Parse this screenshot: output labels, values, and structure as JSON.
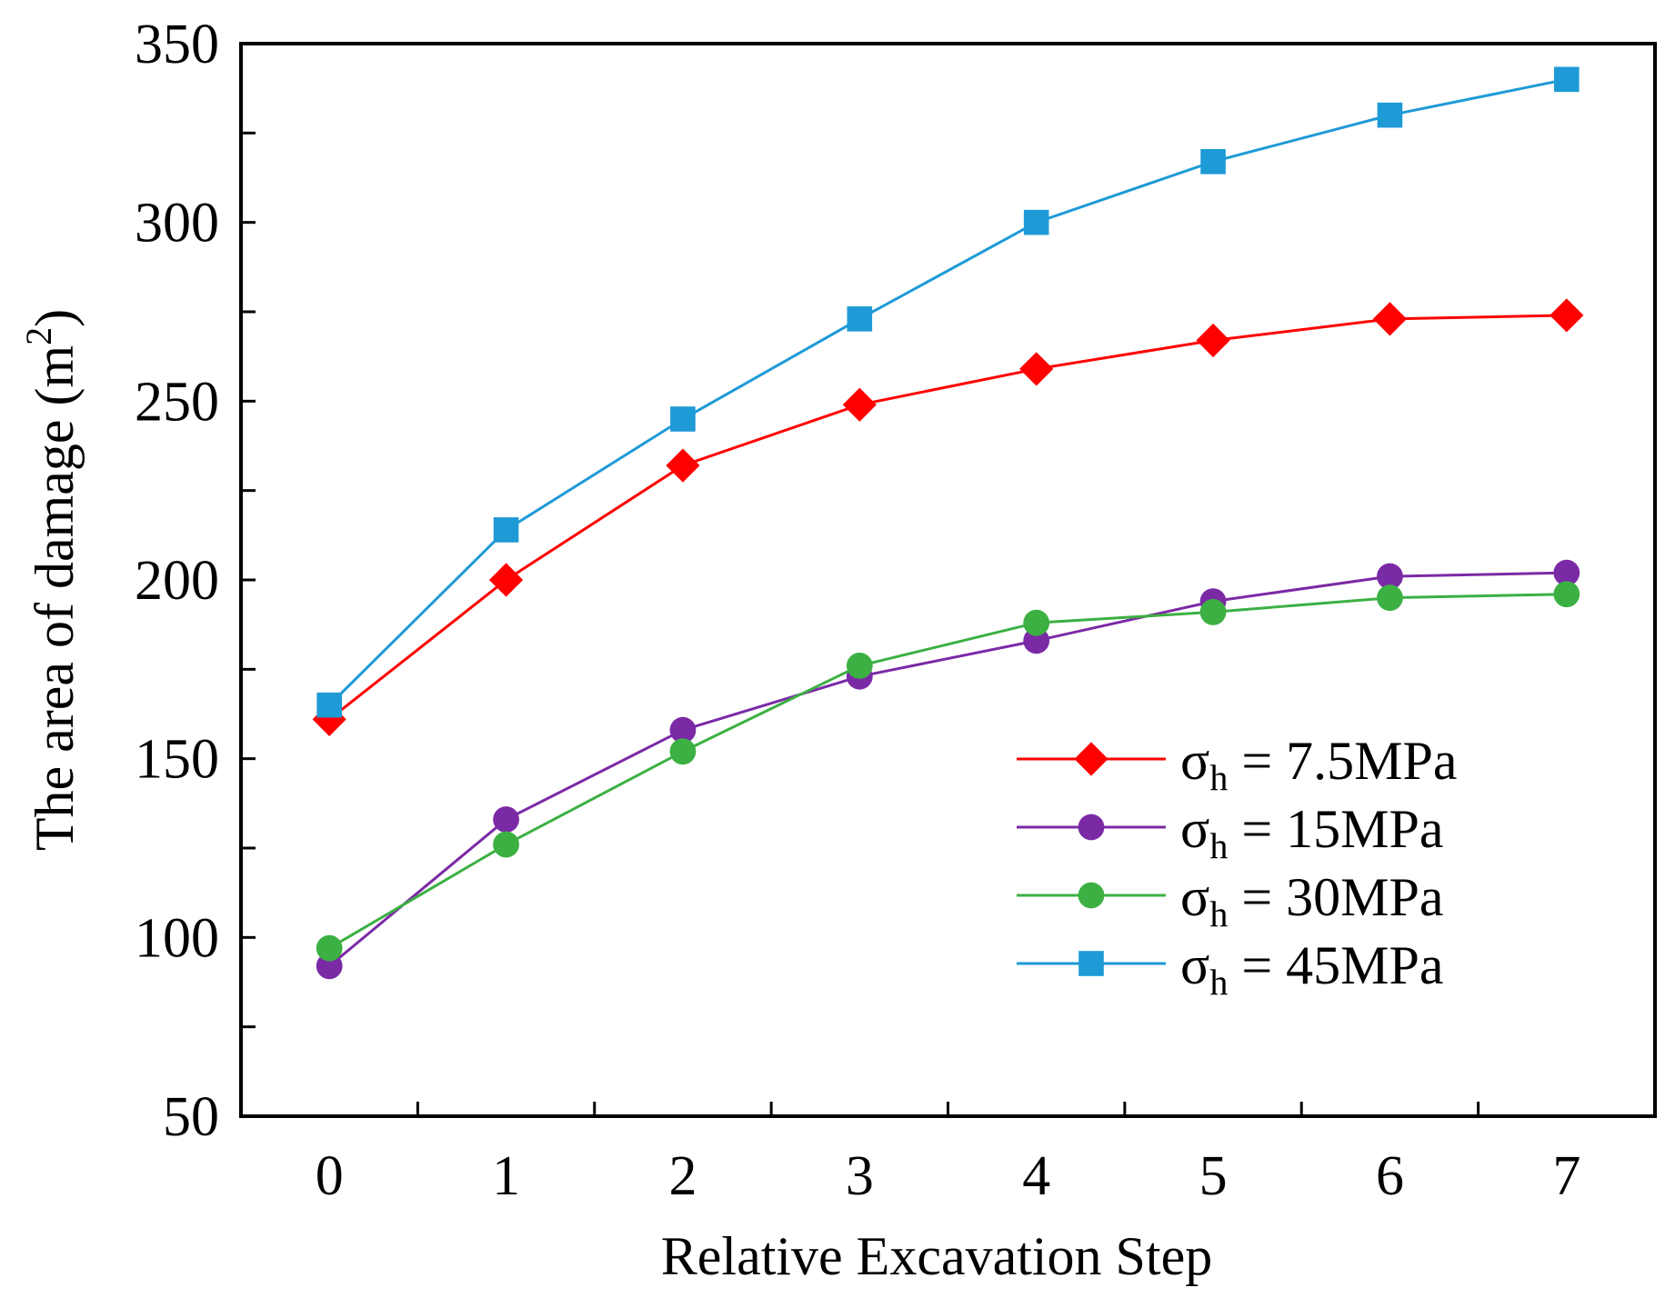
{
  "chart_data": {
    "type": "line",
    "title": "",
    "xlabel": "Relative Excavation Step",
    "ylabel_main": "The area of  damage (m",
    "ylabel_sup": "2",
    "ylabel_close": ")",
    "x": [
      0,
      1,
      2,
      3,
      4,
      5,
      6,
      7
    ],
    "xlim": [
      -0.5,
      7.5
    ],
    "ylim": [
      50,
      350
    ],
    "xticks": [
      "0",
      "1",
      "2",
      "3",
      "4",
      "5",
      "6",
      "7"
    ],
    "yticks": [
      "50",
      "100",
      "150",
      "200",
      "250",
      "300",
      "350"
    ],
    "ytick_values": [
      50,
      100,
      150,
      200,
      250,
      300,
      350
    ],
    "grid": false,
    "legend_position": "bottom-right",
    "series": [
      {
        "name": "σh = 7.5MPa",
        "sigma": "σ",
        "sub": "h",
        "rest": " = 7.5MPa",
        "color": "#ff0000",
        "marker": "diamond",
        "values": [
          161,
          200,
          232,
          249,
          259,
          267,
          273,
          274
        ]
      },
      {
        "name": "σh = 15MPa",
        "sigma": "σ",
        "sub": "h",
        "rest": " = 15MPa",
        "color": "#7b2aa6",
        "marker": "circle",
        "values": [
          92,
          133,
          158,
          173,
          183,
          194,
          201,
          202
        ]
      },
      {
        "name": "σh = 30MPa",
        "sigma": "σ",
        "sub": "h",
        "rest": " = 30MPa",
        "color": "#3cb043",
        "marker": "circle",
        "values": [
          97,
          126,
          152,
          176,
          188,
          191,
          195,
          196
        ]
      },
      {
        "name": "σh = 45MPa",
        "sigma": "σ",
        "sub": "h",
        "rest": " = 45MPa",
        "color": "#1e9ad6",
        "marker": "square",
        "values": [
          165,
          214,
          245,
          273,
          300,
          317,
          330,
          340
        ]
      }
    ]
  }
}
